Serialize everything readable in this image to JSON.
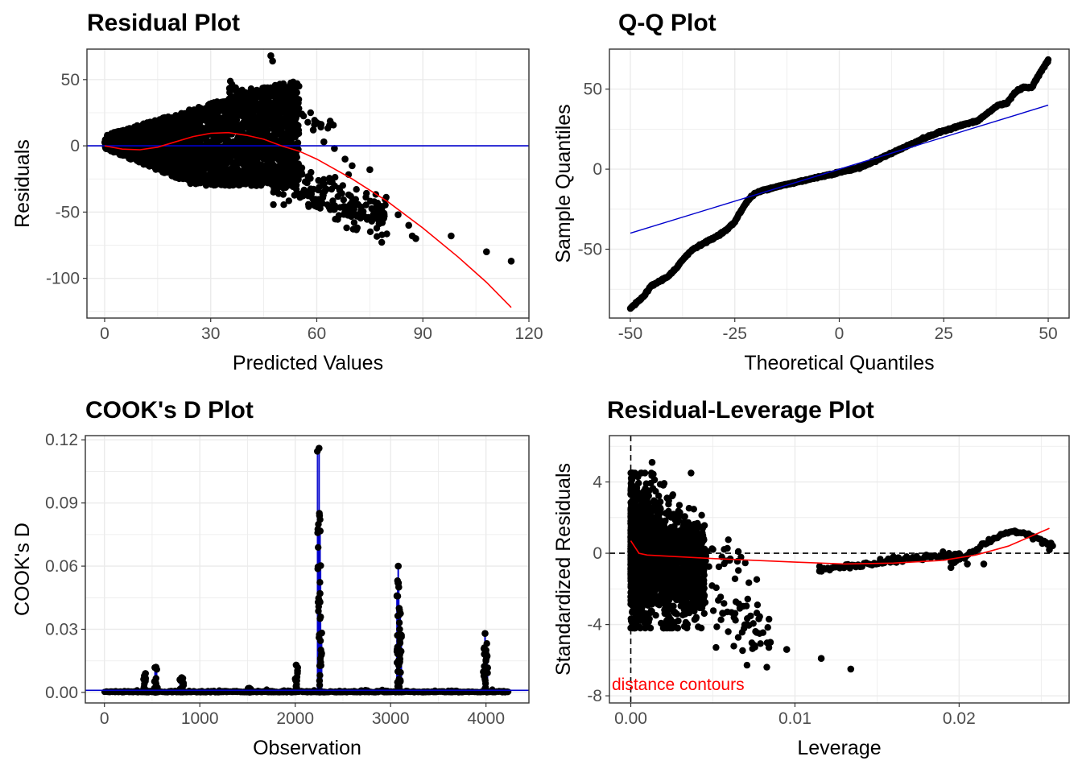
{
  "colors": {
    "points": "#000000",
    "smooth": "#ff0000",
    "ref_line": "#0000cd",
    "grid": "#ebebeb",
    "panel_border": "#333333",
    "annotation": "#ff0000"
  },
  "chart_data": [
    {
      "id": "residual",
      "type": "scatter",
      "title": "Residual Plot",
      "xlabel": "Predicted Values",
      "ylabel": "Residuals",
      "xlim": [
        -5,
        120
      ],
      "ylim": [
        -130,
        73
      ],
      "xticks": [
        0,
        30,
        60,
        90,
        120
      ],
      "yticks": [
        50,
        0,
        -50,
        -100
      ],
      "grid": true,
      "hline": {
        "y": 0,
        "color": "blue"
      },
      "smooth": [
        [
          0,
          0
        ],
        [
          5,
          -2.5
        ],
        [
          10,
          -3
        ],
        [
          15,
          -1
        ],
        [
          20,
          3
        ],
        [
          25,
          7
        ],
        [
          30,
          9.5
        ],
        [
          35,
          10
        ],
        [
          40,
          8
        ],
        [
          45,
          5
        ],
        [
          50,
          0
        ],
        [
          55,
          -4
        ],
        [
          60,
          -10
        ],
        [
          70,
          -25
        ],
        [
          80,
          -42
        ],
        [
          90,
          -62
        ],
        [
          100,
          -84
        ],
        [
          108,
          -103
        ],
        [
          115,
          -122
        ]
      ],
      "points_notable": [
        [
          47,
          68
        ],
        [
          47.5,
          64
        ],
        [
          59,
          12
        ],
        [
          62,
          3
        ],
        [
          65,
          -2
        ],
        [
          68,
          -10
        ],
        [
          75,
          -18
        ],
        [
          70,
          -15
        ],
        [
          83,
          -52
        ],
        [
          86,
          -60
        ],
        [
          87,
          -68
        ],
        [
          88,
          -70
        ],
        [
          98,
          -68
        ],
        [
          108,
          -80
        ],
        [
          115,
          -87
        ],
        [
          78,
          -48
        ],
        [
          72,
          -52
        ],
        [
          68,
          -50
        ],
        [
          65,
          -48
        ]
      ]
    },
    {
      "id": "qq",
      "type": "scatter",
      "title": "Q-Q Plot",
      "xlabel": "Theoretical Quantiles",
      "ylabel": "Sample Quantiles",
      "xlim": [
        -55,
        55
      ],
      "ylim": [
        -93,
        75
      ],
      "xticks": [
        -50,
        -25,
        0,
        25,
        50
      ],
      "yticks": [
        50,
        0,
        -50
      ],
      "grid": true,
      "ref_line": [
        [
          -50,
          -40
        ],
        [
          50,
          40
        ]
      ],
      "sample_curve": [
        [
          -50,
          -87
        ],
        [
          -47,
          -80
        ],
        [
          -45,
          -73
        ],
        [
          -43,
          -70
        ],
        [
          -41,
          -67
        ],
        [
          -39,
          -62
        ],
        [
          -37,
          -55
        ],
        [
          -35,
          -50
        ],
        [
          -33,
          -47
        ],
        [
          -30,
          -43
        ],
        [
          -27,
          -38
        ],
        [
          -25,
          -33
        ],
        [
          -24,
          -28
        ],
        [
          -23,
          -24
        ],
        [
          -22,
          -20
        ],
        [
          -21,
          -17
        ],
        [
          -20,
          -15
        ],
        [
          -18,
          -13
        ],
        [
          -15,
          -11
        ],
        [
          -10,
          -8
        ],
        [
          -5,
          -5
        ],
        [
          0,
          -2
        ],
        [
          5,
          1
        ],
        [
          10,
          7
        ],
        [
          15,
          13
        ],
        [
          20,
          19
        ],
        [
          25,
          24
        ],
        [
          30,
          28
        ],
        [
          33,
          30
        ],
        [
          35,
          34
        ],
        [
          38,
          40
        ],
        [
          40,
          41
        ],
        [
          41,
          44
        ],
        [
          42,
          48
        ],
        [
          44,
          51
        ],
        [
          46,
          51
        ],
        [
          48,
          60
        ],
        [
          50,
          68
        ]
      ]
    },
    {
      "id": "cooks",
      "type": "line",
      "title": "COOK's D Plot",
      "xlabel": "Observation",
      "ylabel": "COOK's D",
      "xlim": [
        -200,
        4450
      ],
      "ylim": [
        -0.005,
        0.122
      ],
      "xticks": [
        0,
        1000,
        2000,
        3000,
        4000
      ],
      "yticks": [
        0.12,
        0.09,
        0.06,
        0.03,
        0.0
      ],
      "ytick_labels": [
        "0.12",
        "0.09",
        "0.06",
        "0.03",
        "0.00"
      ],
      "grid": true,
      "threshold": 0.001,
      "spikes": [
        [
          430,
          0.009
        ],
        [
          540,
          0.012
        ],
        [
          810,
          0.007
        ],
        [
          1520,
          0.002
        ],
        [
          2010,
          0.013
        ],
        [
          2250,
          0.116
        ],
        [
          2255,
          0.084
        ],
        [
          2260,
          0.047
        ],
        [
          3080,
          0.06
        ],
        [
          3085,
          0.05
        ],
        [
          3090,
          0.04
        ],
        [
          3095,
          0.03
        ],
        [
          3990,
          0.028
        ],
        [
          4000,
          0.02
        ]
      ]
    },
    {
      "id": "leverage",
      "type": "scatter",
      "title": "Residual-Leverage Plot",
      "xlabel": "Leverage",
      "ylabel": "Standardized Residuals",
      "xlim": [
        -0.0013,
        0.0267
      ],
      "ylim": [
        -8.4,
        6.6
      ],
      "xticks": [
        0.0,
        0.01,
        0.02
      ],
      "xtick_labels": [
        "0.00",
        "0.01",
        "0.02"
      ],
      "yticks": [
        4,
        0,
        -4,
        -8
      ],
      "grid": true,
      "annotation": "distance contours",
      "smooth": [
        [
          0,
          0.7
        ],
        [
          0.0005,
          0
        ],
        [
          0.001,
          -0.1
        ],
        [
          0.002,
          -0.15
        ],
        [
          0.005,
          -0.3
        ],
        [
          0.01,
          -0.5
        ],
        [
          0.013,
          -0.6
        ],
        [
          0.016,
          -0.55
        ],
        [
          0.019,
          -0.4
        ],
        [
          0.021,
          -0.1
        ],
        [
          0.022,
          0.15
        ],
        [
          0.023,
          0.4
        ],
        [
          0.024,
          0.8
        ],
        [
          0.0255,
          1.4
        ]
      ],
      "points_notable": [
        [
          0.0013,
          5.1
        ],
        [
          0.0134,
          -6.5
        ],
        [
          0.0116,
          -5.9
        ],
        [
          0.0095,
          -5.4
        ],
        [
          0.0085,
          -5.0
        ],
        [
          0.0115,
          -1.0
        ],
        [
          0.013,
          -0.8
        ],
        [
          0.016,
          -0.2
        ],
        [
          0.018,
          -0.1
        ],
        [
          0.0235,
          1.2
        ],
        [
          0.0245,
          0.8
        ],
        [
          0.0255,
          0.2
        ],
        [
          0.0215,
          -0.6
        ],
        [
          0.0195,
          -0.8
        ],
        [
          0.0205,
          -0.6
        ]
      ]
    }
  ]
}
